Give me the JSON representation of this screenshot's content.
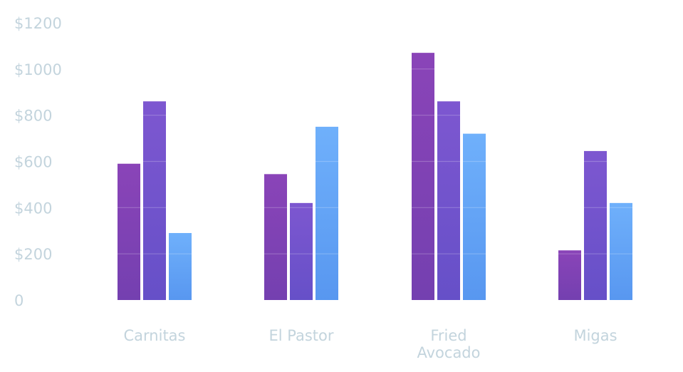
{
  "chart_data": {
    "type": "bar",
    "categories": [
      "Carnitas",
      "El Pastor",
      "Fried Avocado",
      "Migas"
    ],
    "category_lines": [
      [
        "Carnitas"
      ],
      [
        "El Pastor"
      ],
      [
        "Fried",
        "Avocado"
      ],
      [
        "Migas"
      ]
    ],
    "series": [
      {
        "values": [
          590,
          545,
          1070,
          215
        ]
      },
      {
        "values": [
          860,
          420,
          860,
          645
        ]
      },
      {
        "values": [
          290,
          750,
          720,
          420
        ]
      }
    ],
    "y_ticks": [
      0,
      200,
      400,
      600,
      800,
      1000,
      1200
    ],
    "y_tick_labels": [
      "0",
      "$200",
      "$400",
      "$600",
      "$800",
      "$1000",
      "$1200"
    ],
    "ylim": [
      0,
      1200
    ],
    "grid": false,
    "legend": "none",
    "colors": {
      "series": [
        [
          "#8a44b8",
          "#7440b0"
        ],
        [
          "#7d57d0",
          "#6650c8"
        ],
        [
          "#6fb0fb",
          "#5897f0"
        ]
      ],
      "tick_text": "#c3d4dd",
      "background": "#ffffff"
    }
  }
}
